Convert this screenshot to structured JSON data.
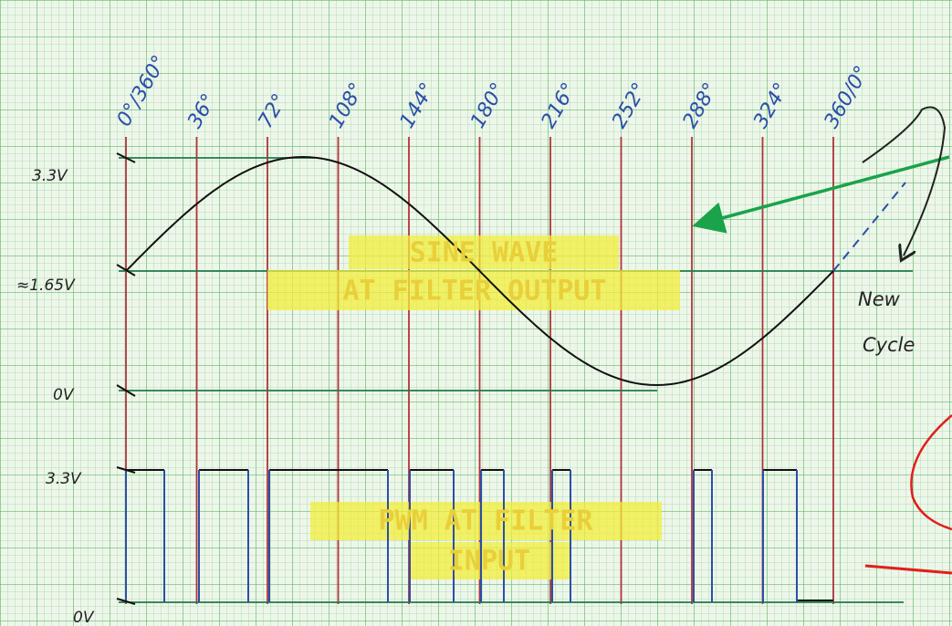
{
  "angle_labels": [
    "0°/360°",
    "36°",
    "72°",
    "108°",
    "144°",
    "180°",
    "216°",
    "252°",
    "288°",
    "324°",
    "360/0°"
  ],
  "sine_levels": [
    "3.3V",
    "≈1.65V",
    "0V"
  ],
  "pwm_levels": [
    "3.3V",
    "0V"
  ],
  "new_cycle": [
    "New",
    "Cycle"
  ],
  "sine_title": [
    "SINE WAVE",
    "AT FILTER OUTPUT"
  ],
  "pwm_title": [
    "PWM AT FILTER",
    "INPUT"
  ]
}
